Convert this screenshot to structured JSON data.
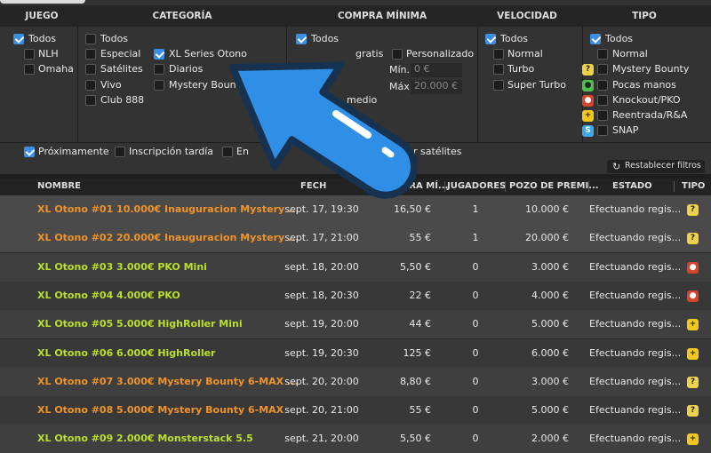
{
  "filters": {
    "juego": {
      "header": "JUEGO",
      "options": [
        "Todos",
        "NLH",
        "Omaha"
      ]
    },
    "categoria": {
      "header": "CATEGORÍA",
      "options": [
        "Todos",
        "Especial",
        "Satélites",
        "Vivo",
        "Club 888",
        "XL Series Otono",
        "Diarios",
        "Mystery Boun"
      ]
    },
    "compra": {
      "header": "COMPRA MÍNIMA",
      "options": [
        "Todos",
        "gratis",
        "Personalizado",
        "medio"
      ],
      "min_label": "Mín.",
      "min_value": "0 €",
      "max_label": "Máx.",
      "max_value": "20.000 €"
    },
    "velocidad": {
      "header": "VELOCIDAD",
      "options": [
        "Todos",
        "Normal",
        "Turbo",
        "Super Turbo"
      ]
    },
    "tipo": {
      "header": "TIPO",
      "options": [
        "Todos",
        "Normal",
        "Mystery Bounty",
        "Pocas manos",
        "Knockout/PKO",
        "Reentrada/R&A",
        "SNAP"
      ]
    },
    "bottom": [
      "Próximamente",
      "Inscripción tardía",
      "En",
      "r satélites"
    ],
    "reset": "Restablecer filtros"
  },
  "table": {
    "headers": [
      "NOMBRE",
      "FECH",
      "PRA MÍ...",
      "JUGADORES",
      "POZO DE PREMI...",
      "ESTADO",
      "TIPO"
    ],
    "rows": [
      [
        "XL Otono #01 10.000€ Inauguracion Mystery ...",
        "sept. 17, 19:30",
        "16,50 €",
        "1",
        "10.000 €",
        "Efectuando regis..."
      ],
      [
        "XL Otono #02 20.000€ Inauguracion Mystery ...",
        "sept. 17, 21:00",
        "55 €",
        "1",
        "20.000 €",
        "Efectuando regis..."
      ],
      [
        "XL Otono #03 3.000€ PKO Mini",
        "sept. 18, 20:00",
        "5,50 €",
        "0",
        "3.000 €",
        "Efectuando regis..."
      ],
      [
        "XL Otono #04 4.000€ PKO",
        "sept. 18, 20:30",
        "22 €",
        "0",
        "4.000 €",
        "Efectuando regis..."
      ],
      [
        "XL Otono #05 5.000€ HighRoller Mini",
        "sept. 19, 20:00",
        "44 €",
        "0",
        "5.000 €",
        "Efectuando regis..."
      ],
      [
        "XL Otono #06 6.000€ HighRoller",
        "sept. 19, 20:30",
        "125 €",
        "0",
        "6.000 €",
        "Efectuando regis..."
      ],
      [
        "XL Otono #07 3.000€ Mystery Bounty 6-MAX ...",
        "sept. 20, 20:00",
        "8,80 €",
        "0",
        "3.000 €",
        "Efectuando regis..."
      ],
      [
        "XL Otono #08 5.000€ Mystery Bounty 6-MAX",
        "sept. 20, 21:00",
        "55 €",
        "0",
        "5.000 €",
        "Efectuando regis..."
      ],
      [
        "XL Otono #09 2.000€ Monsterstack 5.5",
        "sept. 21, 20:00",
        "5,50 €",
        "0",
        "2.000 €",
        "Efectuando regis..."
      ]
    ]
  }
}
